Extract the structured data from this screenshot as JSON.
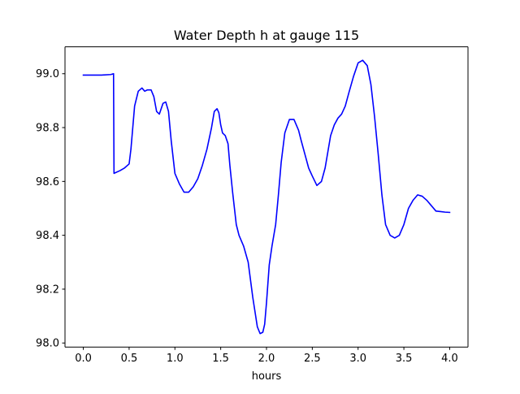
{
  "chart_data": {
    "type": "line",
    "title": "Water Depth h at gauge 115",
    "xlabel": "hours",
    "ylabel": "",
    "xlim": [
      -0.2,
      4.2
    ],
    "ylim": [
      97.985,
      99.1
    ],
    "xticks": [
      0.0,
      0.5,
      1.0,
      1.5,
      2.0,
      2.5,
      3.0,
      3.5,
      4.0
    ],
    "xtick_labels": [
      "0.0",
      "0.5",
      "1.0",
      "1.5",
      "2.0",
      "2.5",
      "3.0",
      "3.5",
      "4.0"
    ],
    "yticks": [
      98.0,
      98.2,
      98.4,
      98.6,
      98.8,
      99.0
    ],
    "ytick_labels": [
      "98.0",
      "98.2",
      "98.4",
      "98.6",
      "98.8",
      "99.0"
    ],
    "grid": false,
    "legend": "none",
    "series": [
      {
        "color": "#0000ff",
        "x": [
          0.0,
          0.1,
          0.2,
          0.3,
          0.33,
          0.335,
          0.4,
          0.45,
          0.5,
          0.52,
          0.56,
          0.6,
          0.64,
          0.67,
          0.7,
          0.74,
          0.77,
          0.8,
          0.83,
          0.87,
          0.9,
          0.93,
          0.96,
          1.0,
          1.05,
          1.1,
          1.15,
          1.2,
          1.25,
          1.3,
          1.35,
          1.4,
          1.43,
          1.46,
          1.48,
          1.5,
          1.52,
          1.55,
          1.58,
          1.6,
          1.63,
          1.67,
          1.7,
          1.75,
          1.8,
          1.85,
          1.9,
          1.93,
          1.96,
          1.98,
          2.0,
          2.03,
          2.06,
          2.08,
          2.1,
          2.13,
          2.16,
          2.2,
          2.25,
          2.3,
          2.35,
          2.38,
          2.42,
          2.46,
          2.5,
          2.55,
          2.6,
          2.64,
          2.67,
          2.7,
          2.74,
          2.78,
          2.82,
          2.86,
          2.9,
          2.95,
          3.0,
          3.05,
          3.1,
          3.14,
          3.18,
          3.22,
          3.26,
          3.3,
          3.35,
          3.4,
          3.45,
          3.5,
          3.55,
          3.6,
          3.65,
          3.7,
          3.75,
          3.8,
          3.85,
          3.9,
          3.95,
          4.0
        ],
        "y": [
          98.995,
          98.995,
          98.995,
          98.997,
          99.0,
          98.63,
          98.64,
          98.65,
          98.665,
          98.72,
          98.88,
          98.935,
          98.947,
          98.935,
          98.94,
          98.94,
          98.915,
          98.86,
          98.85,
          98.89,
          98.895,
          98.86,
          98.75,
          98.63,
          98.59,
          98.56,
          98.56,
          98.58,
          98.61,
          98.66,
          98.72,
          98.8,
          98.86,
          98.87,
          98.855,
          98.81,
          98.78,
          98.77,
          98.74,
          98.66,
          98.56,
          98.44,
          98.4,
          98.36,
          98.3,
          98.17,
          98.06,
          98.035,
          98.04,
          98.07,
          98.15,
          98.29,
          98.36,
          98.4,
          98.44,
          98.55,
          98.67,
          98.78,
          98.83,
          98.83,
          98.79,
          98.75,
          98.7,
          98.65,
          98.62,
          98.585,
          98.6,
          98.65,
          98.71,
          98.77,
          98.81,
          98.835,
          98.85,
          98.88,
          98.93,
          98.99,
          99.04,
          99.05,
          99.03,
          98.96,
          98.84,
          98.7,
          98.55,
          98.44,
          98.4,
          98.39,
          98.4,
          98.44,
          98.5,
          98.53,
          98.55,
          98.545,
          98.53,
          98.51,
          98.49,
          98.488,
          98.486,
          98.485
        ]
      }
    ]
  }
}
